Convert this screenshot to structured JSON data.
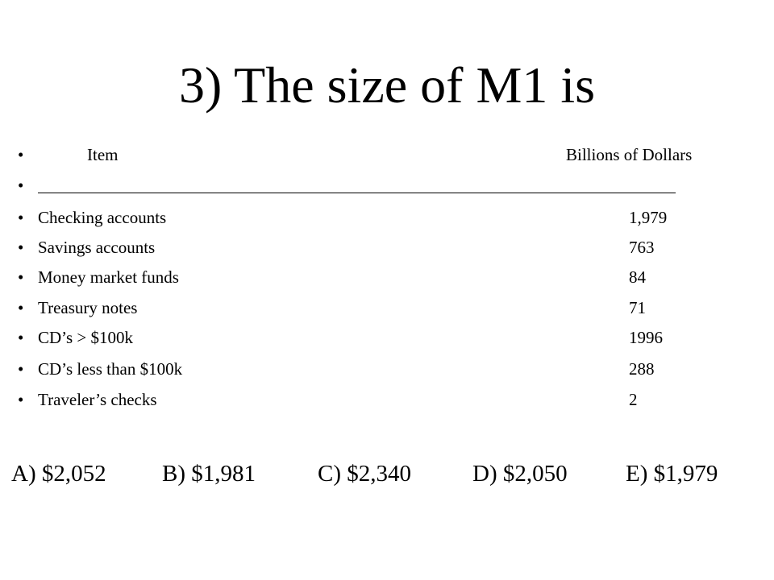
{
  "slide": {
    "title": "3) The size of M1 is",
    "header": {
      "item": "Item",
      "value": "Billions of Dollars"
    },
    "bullet": "•",
    "rows": [
      {
        "label": "Checking accounts",
        "value": "1,979"
      },
      {
        "label": "Savings accounts",
        "value": "763"
      },
      {
        "label": "Money market funds",
        "value": "84"
      },
      {
        "label": "Treasury notes",
        "value": "71"
      },
      {
        "label": "CD’s > $100k",
        "value": "1996"
      },
      {
        "label": "CD’s less than $100k",
        "value": "288"
      },
      {
        "label": "Traveler’s checks",
        "value": "2"
      }
    ],
    "answers": [
      "A) $2,052",
      "B) $1,981",
      "C) $2,340",
      "D) $2,050",
      "E) $1,979"
    ]
  }
}
